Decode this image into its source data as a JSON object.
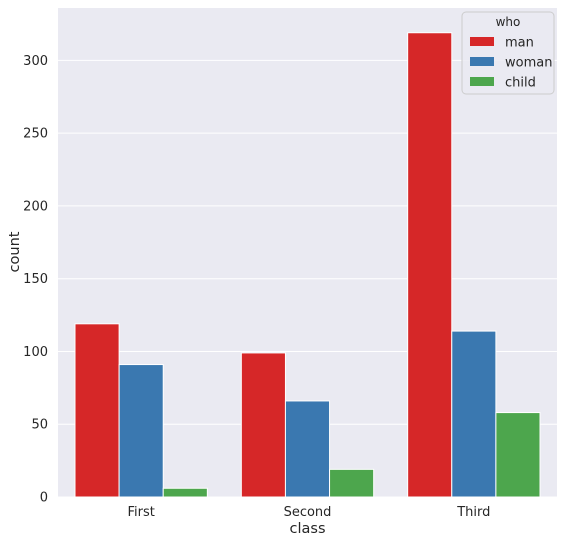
{
  "chart_data": {
    "type": "bar",
    "title": "",
    "xlabel": "class",
    "ylabel": "count",
    "categories": [
      "First",
      "Second",
      "Third"
    ],
    "series": [
      {
        "name": "man",
        "values": [
          119,
          99,
          319
        ],
        "color": "#d62728"
      },
      {
        "name": "woman",
        "values": [
          91,
          66,
          114
        ],
        "color": "#3a78b0"
      },
      {
        "name": "child",
        "values": [
          6,
          19,
          58
        ],
        "color": "#4da64d"
      }
    ],
    "ylim": [
      0,
      336
    ],
    "yticks": [
      0,
      50,
      100,
      150,
      200,
      250,
      300
    ],
    "legend": {
      "title": "who",
      "position": "top-right"
    },
    "grid": true,
    "background": "#eaeaf2",
    "grid_color": "#ffffff"
  }
}
